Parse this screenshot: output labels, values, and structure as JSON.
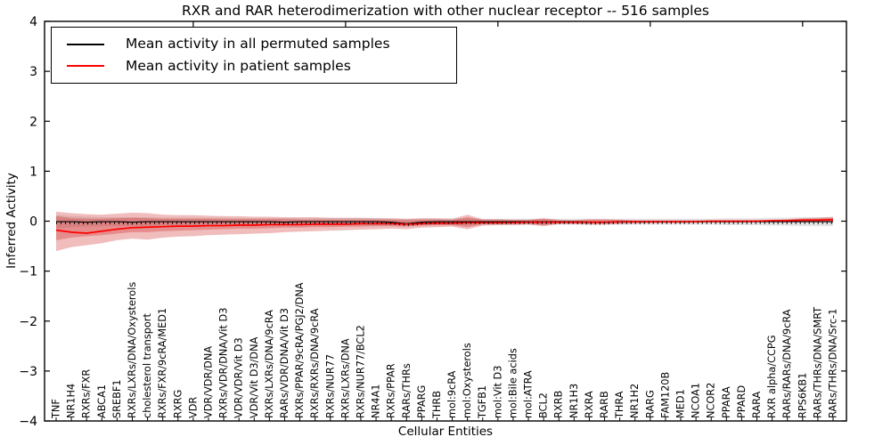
{
  "figure": {
    "title": "RXR and RAR heterodimerization with other nuclear receptor -- 516 samples",
    "xlabel": "Cellular Entities",
    "ylabel": "Inferred Activity"
  },
  "legend": {
    "entries": [
      {
        "label": "Mean activity in all permuted samples",
        "color": "#000000"
      },
      {
        "label": "Mean activity in patient samples",
        "color": "#ff0000"
      }
    ]
  },
  "chart_data": {
    "type": "line",
    "title": "RXR and RAR heterodimerization with other nuclear receptor -- 516 samples",
    "xlabel": "Cellular Entities",
    "ylabel": "Inferred Activity",
    "ylim": [
      -4,
      4
    ],
    "yticks": [
      -4,
      -3,
      -2,
      -1,
      0,
      1,
      2,
      3,
      4
    ],
    "grid": false,
    "legend_position": "upper left",
    "top_tick_indices": [
      9,
      19,
      29,
      39,
      49
    ],
    "categories": [
      "TNF",
      "NR1H4",
      "RXRs/FXR",
      "ABCA1",
      "SREBF1",
      "RXRs/LXRs/DNA/Oxysterols",
      "cholesterol transport",
      "RXRs/FXR/9cRA/MED1",
      "RXRG",
      "VDR",
      "VDR/VDR/DNA",
      "RXRs/VDR/DNA/Vit D3",
      "VDR/VDR/Vit D3",
      "VDR/Vit D3/DNA",
      "RXRs/LXRs/DNA/9cRA",
      "RARs/VDR/DNA/Vit D3",
      "RXRs/PPAR/9cRA/PGJ2/DNA",
      "RXRs/RXRs/DNA/9cRA",
      "RXRs/NUR77",
      "RXRs/LXRs/DNA",
      "RXRs/NUR77/BCL2",
      "NR4A1",
      "RXRs/PPAR",
      "RARs/THRs",
      "PPARG",
      "THRB",
      "mol:9cRA",
      "mol:Oxysterols",
      "TGFB1",
      "mol:Vit D3",
      "mol:Bile acids",
      "mol:ATRA",
      "BCL2",
      "RXRB",
      "NR1H3",
      "RXRA",
      "RARB",
      "THRA",
      "NR1H2",
      "RARG",
      "FAM120B",
      "MED1",
      "NCOA1",
      "NCOR2",
      "PPARA",
      "PPARD",
      "RARA",
      "RXR alpha/CCPG",
      "RARs/RARs/DNA/9cRA",
      "RPS6KB1",
      "RARs/THRs/DNA/SMRT",
      "RARs/THRs/DNA/Src-1"
    ],
    "series": [
      {
        "name": "Mean activity in all permuted samples",
        "color": "#000000",
        "values": [
          -0.01,
          -0.01,
          -0.02,
          -0.01,
          -0.01,
          -0.02,
          -0.01,
          -0.01,
          -0.01,
          -0.01,
          -0.01,
          -0.01,
          -0.01,
          -0.01,
          -0.01,
          -0.02,
          -0.01,
          -0.01,
          -0.01,
          -0.01,
          -0.01,
          -0.01,
          -0.02,
          -0.05,
          -0.02,
          -0.01,
          -0.01,
          -0.01,
          -0.01,
          -0.01,
          -0.01,
          -0.01,
          -0.01,
          -0.01,
          -0.01,
          -0.02,
          -0.02,
          -0.01,
          -0.01,
          -0.01,
          -0.01,
          -0.01,
          -0.01,
          -0.01,
          -0.01,
          -0.01,
          -0.01,
          -0.01,
          -0.01,
          -0.01,
          -0.01,
          -0.01
        ]
      },
      {
        "name": "Mean activity in patient samples",
        "color": "#ff0000",
        "values": [
          -0.18,
          -0.22,
          -0.24,
          -0.2,
          -0.16,
          -0.13,
          -0.12,
          -0.11,
          -0.1,
          -0.1,
          -0.09,
          -0.09,
          -0.08,
          -0.08,
          -0.07,
          -0.07,
          -0.07,
          -0.06,
          -0.06,
          -0.06,
          -0.05,
          -0.05,
          -0.05,
          -0.06,
          -0.05,
          -0.04,
          -0.04,
          -0.03,
          -0.03,
          -0.03,
          -0.03,
          -0.02,
          -0.02,
          -0.02,
          -0.02,
          -0.02,
          -0.02,
          -0.01,
          -0.01,
          -0.01,
          -0.01,
          -0.01,
          -0.01,
          0.0,
          0.0,
          0.0,
          0.0,
          0.01,
          0.01,
          0.02,
          0.02,
          0.03
        ]
      }
    ],
    "bands": [
      {
        "name": "permuted-samples-std-band",
        "color": "#aaaaaa",
        "opacity": 0.3,
        "upper": [
          0.12,
          0.1,
          0.09,
          0.08,
          0.08,
          0.08,
          0.08,
          0.07,
          0.07,
          0.07,
          0.07,
          0.07,
          0.06,
          0.06,
          0.06,
          0.06,
          0.06,
          0.06,
          0.06,
          0.06,
          0.06,
          0.06,
          0.05,
          0.04,
          0.05,
          0.05,
          0.05,
          0.06,
          0.05,
          0.05,
          0.05,
          0.05,
          0.05,
          0.05,
          0.05,
          0.05,
          0.05,
          0.05,
          0.05,
          0.05,
          0.05,
          0.05,
          0.05,
          0.05,
          0.06,
          0.06,
          0.06,
          0.07,
          0.07,
          0.08,
          0.08,
          0.08
        ],
        "lower": [
          -0.14,
          -0.12,
          -0.11,
          -0.1,
          -0.1,
          -0.1,
          -0.1,
          -0.09,
          -0.09,
          -0.09,
          -0.09,
          -0.09,
          -0.08,
          -0.08,
          -0.08,
          -0.08,
          -0.08,
          -0.08,
          -0.08,
          -0.08,
          -0.08,
          -0.08,
          -0.07,
          -0.09,
          -0.07,
          -0.07,
          -0.07,
          -0.08,
          -0.07,
          -0.07,
          -0.07,
          -0.07,
          -0.07,
          -0.07,
          -0.07,
          -0.07,
          -0.07,
          -0.07,
          -0.07,
          -0.07,
          -0.07,
          -0.07,
          -0.07,
          -0.07,
          -0.08,
          -0.08,
          -0.08,
          -0.09,
          -0.09,
          -0.1,
          -0.1,
          -0.1
        ]
      },
      {
        "name": "patient-samples-outer-band",
        "color": "#cc2222",
        "opacity": 0.3,
        "upper": [
          0.19,
          0.16,
          0.14,
          0.13,
          0.15,
          0.17,
          0.16,
          0.13,
          0.12,
          0.12,
          0.11,
          0.1,
          0.1,
          0.09,
          0.09,
          0.08,
          0.08,
          0.08,
          0.07,
          0.07,
          0.07,
          0.06,
          0.06,
          0.05,
          0.06,
          0.06,
          0.05,
          0.13,
          0.04,
          0.04,
          0.03,
          0.03,
          0.06,
          0.03,
          0.02,
          0.04,
          0.04,
          0.03,
          0.02,
          0.02,
          0.02,
          0.02,
          0.02,
          0.02,
          0.02,
          0.02,
          0.02,
          0.03,
          0.04,
          0.06,
          0.07,
          0.09
        ],
        "lower": [
          -0.6,
          -0.52,
          -0.48,
          -0.44,
          -0.38,
          -0.35,
          -0.37,
          -0.33,
          -0.31,
          -0.3,
          -0.28,
          -0.27,
          -0.26,
          -0.25,
          -0.24,
          -0.22,
          -0.21,
          -0.2,
          -0.19,
          -0.18,
          -0.17,
          -0.16,
          -0.15,
          -0.16,
          -0.13,
          -0.12,
          -0.11,
          -0.16,
          -0.09,
          -0.08,
          -0.08,
          -0.07,
          -0.1,
          -0.06,
          -0.06,
          -0.07,
          -0.07,
          -0.06,
          -0.05,
          -0.04,
          -0.04,
          -0.04,
          -0.03,
          -0.03,
          -0.03,
          -0.03,
          -0.02,
          -0.02,
          -0.02,
          -0.01,
          -0.01,
          -0.01
        ]
      },
      {
        "name": "patient-samples-inner-band",
        "color": "#cc2222",
        "opacity": 0.3,
        "upper": [
          0.1,
          0.06,
          0.05,
          0.05,
          0.06,
          0.07,
          0.06,
          0.05,
          0.05,
          0.05,
          0.05,
          0.04,
          0.04,
          0.04,
          0.04,
          0.04,
          0.03,
          0.03,
          0.03,
          0.03,
          0.03,
          0.03,
          0.03,
          0.02,
          0.03,
          0.03,
          0.02,
          0.08,
          0.02,
          0.02,
          0.02,
          0.02,
          0.04,
          0.01,
          0.01,
          0.02,
          0.02,
          0.02,
          0.01,
          0.01,
          0.01,
          0.01,
          0.01,
          0.01,
          0.01,
          0.01,
          0.01,
          0.02,
          0.03,
          0.04,
          0.05,
          0.06
        ],
        "lower": [
          -0.38,
          -0.33,
          -0.3,
          -0.28,
          -0.25,
          -0.22,
          -0.22,
          -0.2,
          -0.19,
          -0.18,
          -0.17,
          -0.16,
          -0.15,
          -0.15,
          -0.14,
          -0.13,
          -0.13,
          -0.12,
          -0.12,
          -0.11,
          -0.11,
          -0.1,
          -0.1,
          -0.11,
          -0.09,
          -0.08,
          -0.08,
          -0.12,
          -0.06,
          -0.06,
          -0.05,
          -0.05,
          -0.08,
          -0.04,
          -0.04,
          -0.05,
          -0.05,
          -0.04,
          -0.03,
          -0.03,
          -0.03,
          -0.02,
          -0.02,
          -0.02,
          -0.02,
          -0.02,
          -0.01,
          -0.01,
          -0.01,
          -0.01,
          0.0,
          0.0
        ]
      }
    ]
  }
}
